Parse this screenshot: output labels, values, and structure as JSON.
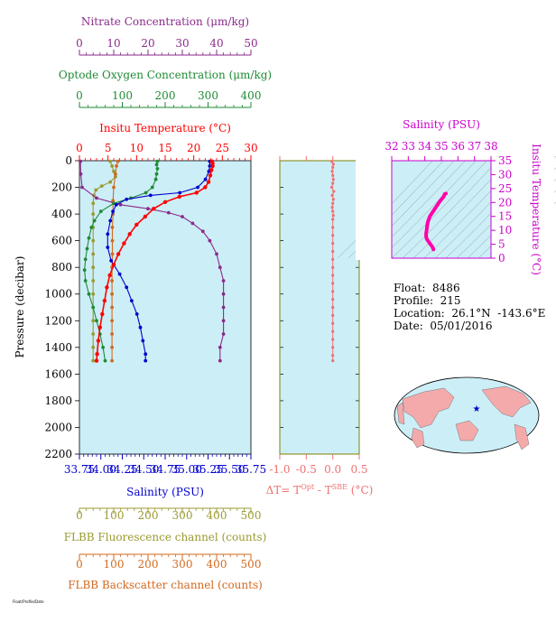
{
  "colors": {
    "nitrate": "#8b2a8b",
    "oxygen": "#1f8a35",
    "temperature": "#ff0000",
    "salinity": "#0000cc",
    "fluorescence": "#9a9a30",
    "backscatter": "#d2691e",
    "dt": "#f07070",
    "ts_axis": "#cc00cc",
    "ts_line": "#ff00aa",
    "panel_bg": "#cceef7",
    "land": "#f4aaaa",
    "ocean": "#cceef7"
  },
  "info": {
    "float": "Float:  8486",
    "profile": "Profile:  215",
    "location": "Location:  26.1°N  -143.6°E",
    "date": "Date:  05/01/2016"
  },
  "footer": "Float/Profile/Date",
  "chart_data": [
    {
      "type": "line",
      "id": "main_profile",
      "ylabel": "Pressure (decibar)",
      "ylim": [
        2200,
        0
      ],
      "yticks": [
        0,
        200,
        400,
        600,
        800,
        1000,
        1200,
        1400,
        1600,
        1800,
        2000,
        2200
      ],
      "axes": {
        "nitrate": {
          "label": "Nitrate Concentration (μm/kg)",
          "lim": [
            0,
            50
          ],
          "ticks": [
            0,
            10,
            20,
            30,
            40,
            50
          ]
        },
        "oxygen": {
          "label": "Optode Oxygen Concentration (μm/kg)",
          "lim": [
            0,
            400
          ],
          "ticks": [
            0,
            100,
            200,
            300,
            400
          ]
        },
        "temperature": {
          "label": "Insitu Temperature (°C)",
          "lim": [
            0,
            30
          ],
          "ticks": [
            0,
            5,
            10,
            15,
            20,
            25,
            30
          ]
        },
        "salinity": {
          "label": "Salinity (PSU)",
          "lim": [
            33.75,
            35.75
          ],
          "ticks": [
            "33.75",
            "34.00",
            "34.25",
            "34.50",
            "34.75",
            "35.00",
            "35.25",
            "35.50",
            "35.75"
          ]
        },
        "fluorescence": {
          "label": "FLBB Fluorescence channel (counts)",
          "lim": [
            0,
            500
          ],
          "ticks": [
            0,
            100,
            200,
            300,
            400,
            500
          ]
        },
        "backscatter": {
          "label": "FLBB Backscatter channel (counts)",
          "lim": [
            0,
            500
          ],
          "ticks": [
            0,
            100,
            200,
            300,
            400,
            500
          ]
        }
      },
      "series": [
        {
          "name": "temperature",
          "points": [
            [
              23.2,
              5
            ],
            [
              23.3,
              20
            ],
            [
              23.3,
              40
            ],
            [
              23.1,
              70
            ],
            [
              22.9,
              110
            ],
            [
              22.6,
              160
            ],
            [
              22.0,
              200
            ],
            [
              20.5,
              240
            ],
            [
              17.5,
              270
            ],
            [
              15.0,
              310
            ],
            [
              13.0,
              360
            ],
            [
              11.5,
              420
            ],
            [
              10.0,
              480
            ],
            [
              8.8,
              550
            ],
            [
              7.8,
              620
            ],
            [
              6.8,
              700
            ],
            [
              6.0,
              780
            ],
            [
              5.3,
              860
            ],
            [
              4.8,
              950
            ],
            [
              4.4,
              1050
            ],
            [
              4.0,
              1150
            ],
            [
              3.6,
              1250
            ],
            [
              3.3,
              1350
            ],
            [
              3.1,
              1450
            ],
            [
              3.0,
              1500
            ]
          ]
        },
        {
          "name": "salinity",
          "points": [
            [
              35.27,
              5
            ],
            [
              35.27,
              40
            ],
            [
              35.26,
              80
            ],
            [
              35.22,
              140
            ],
            [
              35.13,
              200
            ],
            [
              34.92,
              240
            ],
            [
              34.58,
              260
            ],
            [
              34.3,
              290
            ],
            [
              34.18,
              330
            ],
            [
              34.14,
              380
            ],
            [
              34.11,
              450
            ],
            [
              34.08,
              550
            ],
            [
              34.08,
              650
            ],
            [
              34.12,
              750
            ],
            [
              34.22,
              850
            ],
            [
              34.3,
              950
            ],
            [
              34.36,
              1050
            ],
            [
              34.42,
              1150
            ],
            [
              34.46,
              1250
            ],
            [
              34.49,
              1350
            ],
            [
              34.52,
              1450
            ],
            [
              34.52,
              1500
            ]
          ]
        },
        {
          "name": "oxygen",
          "points": [
            [
              182,
              5
            ],
            [
              180,
              30
            ],
            [
              182,
              60
            ],
            [
              180,
              100
            ],
            [
              178,
              140
            ],
            [
              170,
              200
            ],
            [
              155,
              240
            ],
            [
              120,
              280
            ],
            [
              80,
              320
            ],
            [
              50,
              380
            ],
            [
              35,
              450
            ],
            [
              28,
              500
            ],
            [
              22,
              580
            ],
            [
              18,
              660
            ],
            [
              14,
              740
            ],
            [
              12,
              820
            ],
            [
              14,
              900
            ],
            [
              22,
              1000
            ],
            [
              32,
              1100
            ],
            [
              40,
              1200
            ],
            [
              48,
              1300
            ],
            [
              55,
              1400
            ],
            [
              60,
              1500
            ]
          ]
        },
        {
          "name": "nitrate",
          "points": [
            [
              0.3,
              5
            ],
            [
              0.4,
              100
            ],
            [
              0.8,
              200
            ],
            [
              5,
              280
            ],
            [
              12,
              330
            ],
            [
              20,
              360
            ],
            [
              26,
              390
            ],
            [
              30,
              420
            ],
            [
              33,
              470
            ],
            [
              36,
              530
            ],
            [
              38,
              600
            ],
            [
              40,
              700
            ],
            [
              41,
              800
            ],
            [
              42,
              900
            ],
            [
              42,
              1000
            ],
            [
              42,
              1100
            ],
            [
              42,
              1200
            ],
            [
              42,
              1300
            ],
            [
              41,
              1400
            ],
            [
              41,
              1500
            ]
          ]
        },
        {
          "name": "fluorescence",
          "points": [
            [
              90,
              5
            ],
            [
              95,
              40
            ],
            [
              100,
              80
            ],
            [
              105,
              120
            ],
            [
              90,
              160
            ],
            [
              65,
              190
            ],
            [
              48,
              220
            ],
            [
              42,
              260
            ],
            [
              40,
              320
            ],
            [
              40,
              400
            ],
            [
              40,
              500
            ],
            [
              40,
              600
            ],
            [
              40,
              700
            ],
            [
              40,
              800
            ],
            [
              40,
              900
            ],
            [
              40,
              1000
            ],
            [
              40,
              1100
            ],
            [
              40,
              1200
            ],
            [
              40,
              1300
            ],
            [
              40,
              1400
            ],
            [
              40,
              1500
            ]
          ]
        },
        {
          "name": "backscatter",
          "points": [
            [
              112,
              5
            ],
            [
              108,
              40
            ],
            [
              105,
              100
            ],
            [
              100,
              200
            ],
            [
              98,
              300
            ],
            [
              98,
              400
            ],
            [
              96,
              500
            ],
            [
              96,
              600
            ],
            [
              96,
              700
            ],
            [
              95,
              800
            ],
            [
              95,
              900
            ],
            [
              95,
              1000
            ],
            [
              95,
              1100
            ],
            [
              95,
              1200
            ],
            [
              95,
              1300
            ],
            [
              95,
              1400
            ],
            [
              95,
              1500
            ]
          ]
        }
      ]
    },
    {
      "type": "scatter",
      "id": "dt_profile",
      "xlabel": "ΔT= T",
      "xlabel_sup1": "Opt",
      "xlabel_mid": " - T",
      "xlabel_sup2": "SBE",
      "xlabel_end": " (°C)",
      "xlim": [
        -1.0,
        0.5
      ],
      "xticks": [
        "-1.0",
        "-0.5",
        "0.0",
        "0.5"
      ],
      "ylim": [
        2200,
        0
      ],
      "points": [
        [
          -0.02,
          5
        ],
        [
          0.01,
          25
        ],
        [
          0.0,
          50
        ],
        [
          -0.01,
          80
        ],
        [
          0.0,
          110
        ],
        [
          0.01,
          140
        ],
        [
          0.0,
          170
        ],
        [
          -0.02,
          200
        ],
        [
          0.02,
          230
        ],
        [
          -0.01,
          260
        ],
        [
          0.01,
          290
        ],
        [
          0.0,
          320
        ],
        [
          -0.01,
          350
        ],
        [
          0.0,
          380
        ],
        [
          0.01,
          410
        ],
        [
          0.0,
          440
        ],
        [
          0.0,
          500
        ],
        [
          0.0,
          560
        ],
        [
          0.0,
          620
        ],
        [
          0.0,
          680
        ],
        [
          0.0,
          740
        ],
        [
          0.0,
          800
        ],
        [
          0.0,
          860
        ],
        [
          0.0,
          920
        ],
        [
          0.0,
          980
        ],
        [
          0.0,
          1040
        ],
        [
          0.0,
          1100
        ],
        [
          0.0,
          1160
        ],
        [
          0.0,
          1220
        ],
        [
          0.0,
          1280
        ],
        [
          0.0,
          1340
        ],
        [
          0.0,
          1400
        ],
        [
          0.0,
          1460
        ],
        [
          0.0,
          1500
        ]
      ]
    },
    {
      "type": "line",
      "id": "ts_diagram",
      "title": "Salinity (PSU)",
      "ylabel": "Insitu Temperature (°C)",
      "xlim": [
        32,
        38
      ],
      "xticks": [
        32,
        33,
        34,
        35,
        36,
        37,
        38
      ],
      "ylim": [
        0,
        35
      ],
      "yticks": [
        0,
        5,
        10,
        15,
        20,
        25,
        30,
        35
      ],
      "points": [
        [
          35.27,
          23.2
        ],
        [
          35.2,
          23.0
        ],
        [
          35.13,
          22.0
        ],
        [
          34.92,
          20.5
        ],
        [
          34.58,
          17.5
        ],
        [
          34.3,
          15.0
        ],
        [
          34.18,
          13.0
        ],
        [
          34.14,
          11.5
        ],
        [
          34.11,
          10.0
        ],
        [
          34.08,
          8.8
        ],
        [
          34.08,
          7.8
        ],
        [
          34.12,
          6.8
        ],
        [
          34.22,
          6.0
        ],
        [
          34.3,
          5.3
        ],
        [
          34.36,
          4.8
        ],
        [
          34.42,
          4.4
        ],
        [
          34.46,
          4.0
        ],
        [
          34.49,
          3.6
        ],
        [
          34.52,
          3.1
        ]
      ]
    }
  ]
}
